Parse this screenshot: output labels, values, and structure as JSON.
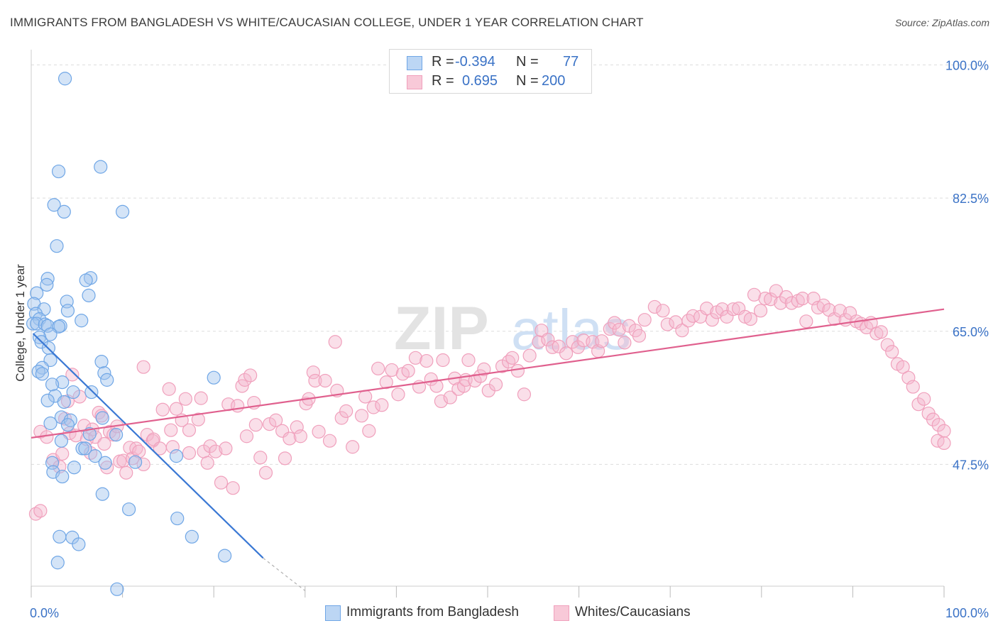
{
  "header": {
    "title": "IMMIGRANTS FROM BANGLADESH VS WHITE/CAUCASIAN COLLEGE, UNDER 1 YEAR CORRELATION CHART",
    "source": "Source: ZipAtlas.com"
  },
  "legend": {
    "r_label": "R =",
    "n_label": "N =",
    "series1": {
      "r": "-0.394",
      "n": "77",
      "name": "Immigrants from Bangladesh"
    },
    "series2": {
      "r": "0.695",
      "n": "200",
      "name": "Whites/Caucasians"
    }
  },
  "colors": {
    "blue": "#6fa6e6",
    "pink": "#f0a0bc",
    "blue_line": "#3a78d4",
    "pink_line": "#e0608e",
    "tick_text": "#3a72c6"
  },
  "watermark": {
    "zip": "ZIP",
    "atlas": "atlas"
  },
  "chart_data": {
    "type": "scatter",
    "ylabel": "College, Under 1 year",
    "xlim": [
      0,
      100
    ],
    "ylim": [
      31.5,
      102
    ],
    "y_ticks": [
      {
        "value": 100.0,
        "label": "100.0%"
      },
      {
        "value": 82.5,
        "label": "82.5%"
      },
      {
        "value": 65.0,
        "label": "65.0%"
      },
      {
        "value": 47.5,
        "label": "47.5%"
      }
    ],
    "x_tick_labels": {
      "min": "0.0%",
      "max": "100.0%"
    },
    "series": [
      {
        "name": "Immigrants from Bangladesh",
        "color": "#6fa6e6",
        "trend": {
          "x0": 0.2,
          "y0": 64.7,
          "x1": 25.4,
          "y1": 35.2,
          "dash_to_x": 30.0,
          "dash_to_y": 30.9
        },
        "points": [
          [
            3.7,
            98.2
          ],
          [
            7.6,
            86.6
          ],
          [
            3.0,
            86.0
          ],
          [
            2.5,
            81.6
          ],
          [
            3.6,
            80.7
          ],
          [
            10.0,
            80.7
          ],
          [
            2.8,
            76.2
          ],
          [
            6.5,
            72.0
          ],
          [
            6.0,
            71.7
          ],
          [
            1.8,
            71.9
          ],
          [
            1.7,
            71.1
          ],
          [
            0.6,
            70.0
          ],
          [
            6.3,
            69.7
          ],
          [
            3.9,
            68.9
          ],
          [
            0.3,
            68.6
          ],
          [
            1.4,
            67.9
          ],
          [
            4.0,
            67.7
          ],
          [
            0.5,
            67.3
          ],
          [
            0.9,
            66.6
          ],
          [
            5.5,
            66.4
          ],
          [
            0.2,
            66.0
          ],
          [
            0.6,
            66.0
          ],
          [
            1.5,
            65.9
          ],
          [
            1.8,
            65.7
          ],
          [
            3.2,
            65.7
          ],
          [
            3.0,
            65.6
          ],
          [
            2.1,
            64.6
          ],
          [
            0.9,
            64.2
          ],
          [
            1.1,
            63.6
          ],
          [
            1.9,
            62.8
          ],
          [
            2.1,
            61.2
          ],
          [
            7.7,
            61.0
          ],
          [
            1.2,
            60.2
          ],
          [
            0.8,
            59.7
          ],
          [
            1.2,
            59.4
          ],
          [
            8.0,
            59.5
          ],
          [
            8.3,
            58.6
          ],
          [
            20.0,
            58.9
          ],
          [
            3.4,
            58.3
          ],
          [
            2.3,
            58.0
          ],
          [
            4.6,
            57.0
          ],
          [
            6.6,
            57.0
          ],
          [
            2.6,
            56.5
          ],
          [
            1.8,
            55.9
          ],
          [
            3.6,
            55.7
          ],
          [
            3.3,
            53.7
          ],
          [
            7.8,
            53.6
          ],
          [
            4.3,
            53.3
          ],
          [
            2.1,
            52.9
          ],
          [
            4.0,
            52.7
          ],
          [
            6.4,
            51.5
          ],
          [
            9.3,
            51.4
          ],
          [
            3.3,
            50.6
          ],
          [
            5.6,
            49.6
          ],
          [
            5.9,
            49.6
          ],
          [
            7.0,
            48.6
          ],
          [
            15.9,
            48.6
          ],
          [
            8.1,
            47.7
          ],
          [
            11.4,
            47.8
          ],
          [
            2.3,
            47.7
          ],
          [
            4.7,
            47.1
          ],
          [
            2.4,
            46.5
          ],
          [
            3.4,
            45.9
          ],
          [
            7.8,
            43.6
          ],
          [
            10.7,
            41.6
          ],
          [
            16.0,
            40.4
          ],
          [
            3.1,
            38.0
          ],
          [
            4.5,
            37.9
          ],
          [
            5.2,
            37.0
          ],
          [
            17.6,
            38.0
          ],
          [
            21.2,
            35.5
          ],
          [
            2.9,
            34.6
          ],
          [
            9.4,
            31.1
          ]
        ]
      },
      {
        "name": "Whites/Caucasians",
        "color": "#f0a0bc",
        "trend": {
          "x0": 0.0,
          "y0": 51.0,
          "x1": 100.0,
          "y1": 67.9
        },
        "points": [
          [
            0.5,
            41.0
          ],
          [
            1.0,
            41.4
          ],
          [
            1.0,
            51.8
          ],
          [
            1.7,
            51.1
          ],
          [
            2.4,
            48.1
          ],
          [
            3.1,
            47.2
          ],
          [
            3.4,
            48.9
          ],
          [
            3.7,
            53.5
          ],
          [
            4.0,
            55.8
          ],
          [
            4.2,
            51.6
          ],
          [
            4.5,
            59.3
          ],
          [
            4.9,
            51.3
          ],
          [
            5.3,
            56.4
          ],
          [
            5.8,
            52.6
          ],
          [
            6.1,
            50.8
          ],
          [
            6.5,
            49.0
          ],
          [
            6.7,
            52.1
          ],
          [
            7.0,
            51.1
          ],
          [
            7.4,
            54.3
          ],
          [
            7.7,
            53.9
          ],
          [
            8.0,
            50.2
          ],
          [
            8.3,
            47.1
          ],
          [
            8.6,
            51.8
          ],
          [
            9.0,
            51.4
          ],
          [
            9.4,
            52.5
          ],
          [
            9.7,
            47.9
          ],
          [
            10.1,
            48.0
          ],
          [
            10.4,
            46.4
          ],
          [
            10.8,
            49.7
          ],
          [
            11.1,
            48.3
          ],
          [
            11.5,
            49.6
          ],
          [
            11.8,
            49.2
          ],
          [
            12.3,
            47.5
          ],
          [
            12.3,
            60.3
          ],
          [
            12.7,
            51.4
          ],
          [
            13.3,
            50.6
          ],
          [
            13.4,
            50.8
          ],
          [
            14.1,
            49.6
          ],
          [
            14.4,
            54.7
          ],
          [
            15.1,
            57.4
          ],
          [
            15.3,
            52.0
          ],
          [
            15.5,
            49.8
          ],
          [
            15.9,
            54.8
          ],
          [
            16.5,
            53.3
          ],
          [
            16.9,
            56.1
          ],
          [
            17.3,
            52.0
          ],
          [
            17.3,
            49.0
          ],
          [
            18.3,
            53.4
          ],
          [
            18.6,
            56.2
          ],
          [
            18.9,
            49.2
          ],
          [
            19.3,
            47.7
          ],
          [
            19.6,
            49.9
          ],
          [
            20.2,
            49.2
          ],
          [
            20.8,
            45.1
          ],
          [
            21.3,
            49.6
          ],
          [
            21.6,
            55.4
          ],
          [
            22.1,
            44.4
          ],
          [
            22.6,
            55.2
          ],
          [
            23.1,
            57.8
          ],
          [
            23.4,
            58.6
          ],
          [
            23.6,
            51.2
          ],
          [
            24.0,
            59.2
          ],
          [
            24.4,
            55.6
          ],
          [
            24.6,
            52.7
          ],
          [
            25.1,
            48.4
          ],
          [
            25.7,
            46.4
          ],
          [
            26.1,
            52.8
          ],
          [
            26.8,
            53.3
          ],
          [
            27.5,
            51.9
          ],
          [
            27.8,
            48.3
          ],
          [
            28.3,
            50.9
          ],
          [
            29.1,
            52.4
          ],
          [
            29.5,
            51.2
          ],
          [
            30.1,
            55.5
          ],
          [
            30.4,
            56.1
          ],
          [
            30.9,
            59.6
          ],
          [
            31.1,
            58.5
          ],
          [
            31.5,
            51.8
          ],
          [
            32.2,
            58.5
          ],
          [
            32.7,
            50.6
          ],
          [
            33.3,
            63.6
          ],
          [
            33.5,
            57.2
          ],
          [
            34.0,
            53.6
          ],
          [
            34.5,
            54.5
          ],
          [
            35.2,
            49.8
          ],
          [
            36.2,
            53.9
          ],
          [
            36.6,
            56.4
          ],
          [
            37.0,
            51.9
          ],
          [
            37.5,
            55.0
          ],
          [
            38.0,
            60.1
          ],
          [
            38.4,
            55.3
          ],
          [
            38.9,
            58.3
          ],
          [
            39.5,
            59.9
          ],
          [
            40.2,
            56.7
          ],
          [
            40.7,
            59.4
          ],
          [
            41.3,
            59.8
          ],
          [
            42.1,
            61.5
          ],
          [
            42.5,
            57.7
          ],
          [
            43.3,
            61.1
          ],
          [
            43.8,
            58.7
          ],
          [
            44.4,
            57.8
          ],
          [
            44.9,
            55.8
          ],
          [
            45.1,
            61.2
          ],
          [
            45.9,
            56.3
          ],
          [
            46.4,
            58.8
          ],
          [
            46.8,
            57.4
          ],
          [
            47.4,
            57.8
          ],
          [
            47.6,
            58.6
          ],
          [
            47.9,
            61.2
          ],
          [
            48.6,
            58.5
          ],
          [
            49.2,
            59.1
          ],
          [
            49.6,
            60.0
          ],
          [
            50.1,
            57.2
          ],
          [
            50.9,
            58.0
          ],
          [
            51.6,
            60.4
          ],
          [
            52.3,
            61.0
          ],
          [
            52.7,
            61.5
          ],
          [
            53.3,
            59.8
          ],
          [
            54.0,
            56.7
          ],
          [
            54.6,
            61.8
          ],
          [
            55.6,
            63.6
          ],
          [
            55.9,
            65.1
          ],
          [
            56.6,
            63.9
          ],
          [
            57.1,
            62.9
          ],
          [
            57.8,
            63.0
          ],
          [
            58.6,
            62.1
          ],
          [
            59.3,
            63.6
          ],
          [
            59.9,
            62.9
          ],
          [
            60.5,
            63.8
          ],
          [
            61.5,
            63.6
          ],
          [
            62.1,
            62.4
          ],
          [
            62.5,
            63.7
          ],
          [
            63.4,
            65.3
          ],
          [
            63.9,
            66.1
          ],
          [
            64.4,
            65.2
          ],
          [
            65.0,
            63.5
          ],
          [
            65.5,
            65.7
          ],
          [
            66.2,
            65.1
          ],
          [
            66.6,
            64.4
          ],
          [
            67.2,
            66.5
          ],
          [
            68.3,
            68.2
          ],
          [
            69.2,
            67.7
          ],
          [
            69.7,
            65.9
          ],
          [
            70.6,
            66.2
          ],
          [
            71.3,
            65.1
          ],
          [
            72.0,
            66.4
          ],
          [
            72.5,
            67.0
          ],
          [
            73.3,
            66.9
          ],
          [
            74.0,
            68.0
          ],
          [
            74.6,
            66.5
          ],
          [
            75.1,
            67.5
          ],
          [
            75.7,
            67.9
          ],
          [
            76.2,
            66.9
          ],
          [
            76.9,
            67.9
          ],
          [
            77.5,
            68.0
          ],
          [
            78.2,
            66.9
          ],
          [
            78.8,
            66.6
          ],
          [
            79.2,
            69.8
          ],
          [
            79.9,
            67.7
          ],
          [
            80.4,
            69.3
          ],
          [
            81.0,
            69.2
          ],
          [
            81.6,
            70.3
          ],
          [
            82.1,
            68.7
          ],
          [
            82.7,
            69.5
          ],
          [
            83.3,
            68.7
          ],
          [
            84.0,
            69.0
          ],
          [
            84.5,
            69.3
          ],
          [
            84.9,
            66.3
          ],
          [
            85.7,
            69.3
          ],
          [
            86.2,
            68.1
          ],
          [
            86.8,
            68.4
          ],
          [
            87.4,
            67.8
          ],
          [
            88.0,
            66.6
          ],
          [
            88.6,
            67.7
          ],
          [
            89.2,
            66.5
          ],
          [
            89.7,
            67.4
          ],
          [
            90.4,
            66.3
          ],
          [
            90.9,
            66.0
          ],
          [
            91.5,
            65.5
          ],
          [
            92.0,
            66.1
          ],
          [
            92.6,
            64.7
          ],
          [
            93.1,
            64.9
          ],
          [
            93.8,
            63.2
          ],
          [
            94.3,
            62.3
          ],
          [
            94.9,
            60.7
          ],
          [
            95.5,
            60.3
          ],
          [
            96.1,
            58.9
          ],
          [
            96.6,
            57.7
          ],
          [
            97.2,
            55.4
          ],
          [
            97.8,
            56.1
          ],
          [
            98.3,
            54.2
          ],
          [
            98.8,
            53.4
          ],
          [
            99.4,
            52.7
          ],
          [
            100.0,
            51.9
          ],
          [
            99.3,
            50.6
          ],
          [
            100.0,
            50.3
          ]
        ]
      }
    ]
  }
}
